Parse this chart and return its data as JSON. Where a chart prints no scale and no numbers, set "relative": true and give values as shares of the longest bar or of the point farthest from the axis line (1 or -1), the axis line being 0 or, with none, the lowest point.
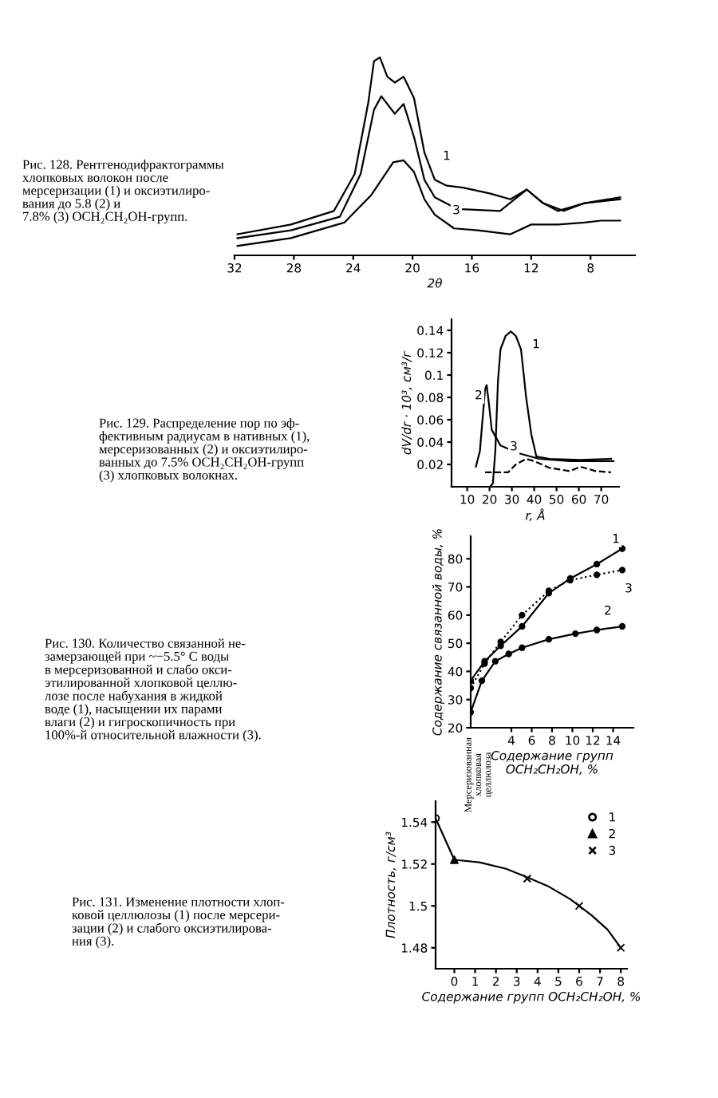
{
  "chart_data": [
    {
      "type": "line",
      "relative": true,
      "xlabel": "2θ",
      "xlim": [
        32,
        5
      ],
      "xticks": [
        32,
        28,
        24,
        20,
        16,
        12,
        8
      ],
      "tick_labels": "x",
      "series": [
        {
          "color": "#000000",
          "x": [
            31.8,
            28.2,
            25.3,
            23.9,
            23.0,
            22.6,
            22.2,
            21.7,
            21.2,
            20.6,
            19.9,
            19.2,
            18.5,
            17.7,
            16.6,
            14.8,
            13.4,
            12.3,
            11.2,
            9.8,
            8.4,
            6.0
          ],
          "values": [
            0.09,
            0.14,
            0.21,
            0.4,
            0.76,
            0.98,
            1.0,
            0.9,
            0.87,
            0.9,
            0.79,
            0.51,
            0.37,
            0.34,
            0.33,
            0.3,
            0.27,
            0.32,
            0.25,
            0.21,
            0.25,
            0.27
          ]
        },
        {
          "color": "#000000",
          "x": [
            31.8,
            28.2,
            24.9,
            23.5,
            22.6,
            22.1,
            21.2,
            20.6,
            19.9,
            19.2,
            18.5,
            17.0,
            14.1,
            12.3,
            11.2,
            10.2,
            8.4,
            6.0
          ],
          "values": [
            0.07,
            0.11,
            0.18,
            0.4,
            0.73,
            0.8,
            0.71,
            0.76,
            0.59,
            0.37,
            0.28,
            0.22,
            0.21,
            0.32,
            0.25,
            0.21,
            0.25,
            0.28
          ]
        },
        {
          "color": "#000000",
          "x": [
            31.8,
            28.2,
            24.6,
            22.8,
            21.3,
            20.6,
            19.9,
            19.2,
            18.5,
            17.2,
            15.6,
            13.4,
            12.0,
            10.2,
            8.4,
            7.3,
            6.0
          ],
          "values": [
            0.03,
            0.07,
            0.15,
            0.29,
            0.46,
            0.47,
            0.41,
            0.27,
            0.19,
            0.12,
            0.11,
            0.09,
            0.14,
            0.14,
            0.15,
            0.16,
            0.16
          ]
        }
      ],
      "annotations": [
        "1",
        "3",
        "Рис. 128. Рентгенодифрактограммы\nхлопковых волокон после\nмерсеризации (1) и оксиэтилиро-\nвания до 5.8 (2) и\n7.8% (3) OCH₂CH₂OH-групп."
      ]
    },
    {
      "type": "line",
      "ylabel": "dV/dr · 10³, см³/г",
      "xlabel": "r, Å",
      "xlim": [
        3,
        78
      ],
      "ylim": [
        0,
        0.15
      ],
      "xticks": [
        10,
        20,
        30,
        40,
        50,
        60,
        70
      ],
      "yticks": [
        0.02,
        0.04,
        0.06,
        0.08,
        0.1,
        0.12,
        0.14
      ],
      "series": [
        {
          "color": "#000000",
          "x": [
            20.3,
            21.5,
            22.6,
            23.8,
            24.9,
            27.2,
            29.5,
            31.8,
            34.1,
            36.4,
            38.7,
            41.0,
            46.8,
            60.6,
            74.4
          ],
          "values": [
            0.0,
            0.003,
            0.032,
            0.095,
            0.123,
            0.135,
            0.139,
            0.135,
            0.123,
            0.08,
            0.047,
            0.027,
            0.025,
            0.024,
            0.025
          ]
        },
        {
          "color": "#000000",
          "x": [
            13.9,
            15.7,
            16.9,
            18.0,
            18.7,
            19.7,
            21.0,
            24.9,
            33.0,
            42.2,
            56.0,
            68.6,
            75.5
          ],
          "values": [
            0.018,
            0.032,
            0.061,
            0.087,
            0.091,
            0.075,
            0.051,
            0.037,
            0.03,
            0.025,
            0.023,
            0.023,
            0.023
          ]
        },
        {
          "color": "#000000",
          "line_style": "dashed",
          "x": [
            18.0,
            28.4,
            31.8,
            36.4,
            39.9,
            46.8,
            56.0,
            60.6,
            67.5,
            74.4
          ],
          "values": [
            0.013,
            0.013,
            0.02,
            0.025,
            0.023,
            0.017,
            0.014,
            0.018,
            0.014,
            0.013
          ]
        }
      ],
      "annotations": [
        "1",
        "2",
        "3",
        "Рис. 129. Распределение пор по эф-\nфективным радиусам в нативных (1),\nмерсеризованных (2) и оксиэтилиро-\nванных до 7.5% OCH₂CH₂OH-групп\n(3) хлопковых волокнах."
      ]
    },
    {
      "type": "line",
      "ylabel": "Содержание связанной воды, %",
      "xlabel": "Содержание групп\nOCH₂CH₂OH, %",
      "xlim": [
        0,
        16
      ],
      "ylim": [
        20,
        88
      ],
      "xticks": [
        4,
        6,
        8,
        10,
        12,
        14
      ],
      "yticks": [
        20,
        30,
        40,
        50,
        60,
        70,
        80
      ],
      "marker": "circle",
      "series": [
        {
          "color": "#000000",
          "x": [
            0,
            1.37,
            2.95,
            5.05,
            7.68,
            9.79,
            12.4,
            14.9
          ],
          "values": [
            36.7,
            43.6,
            49.1,
            56.0,
            67.8,
            73.0,
            78.1,
            83.6
          ]
        },
        {
          "color": "#000000",
          "x": [
            0,
            1.1,
            2.42,
            3.74,
            5.05,
            7.68,
            10.3,
            12.4,
            14.9
          ],
          "values": [
            25.5,
            36.7,
            43.6,
            46.2,
            48.4,
            51.4,
            53.4,
            54.7,
            56.0
          ]
        },
        {
          "color": "#000000",
          "line_style": "dotted",
          "x": [
            0,
            1.37,
            2.95,
            5.05,
            7.68,
            9.79,
            12.4,
            14.9
          ],
          "values": [
            34.1,
            42.8,
            50.5,
            60.0,
            68.6,
            72.4,
            74.3,
            76.0
          ]
        }
      ],
      "annotations": [
        "1",
        "2",
        "3",
        "Рис. 130. Количество связанной не-\nзамерзающей при ~−5.5° C воды\nв мерсеризованной и слабо окси-\nэтилированной хлопковой целлю-\nлозе после набухания в жидкой\nводе (1), насыщении их парами\nвлаги (2) и гигроскопичность при\n100%-й относительной влажности (3).",
        "Мерсеризованная\nхлопковая\nцеллюлоза"
      ]
    },
    {
      "type": "line",
      "ylabel": "Плотность, г/см³",
      "xlabel": "Содержание групп OCH₂CH₂OH, %",
      "xlim": [
        -0.9,
        8.3
      ],
      "ylim": [
        1.47,
        1.55
      ],
      "xticks": [
        0,
        1,
        2,
        3,
        4,
        5,
        6,
        7,
        8
      ],
      "yticks": [
        1.48,
        1.5,
        1.52,
        1.54
      ],
      "legend": "top right",
      "series": [
        {
          "color": "#000000",
          "x": [
            -0.9,
            0,
            1.2,
            2.49,
            3.51,
            4.54,
            5.56,
            6.59,
            7.36,
            8.0
          ],
          "values": [
            1.5418,
            1.522,
            1.5208,
            1.5177,
            1.5136,
            1.5092,
            1.5033,
            1.4956,
            1.4887,
            1.48
          ]
        },
        {
          "type": "scatter",
          "name": "1",
          "marker": "circle",
          "color": "#000000",
          "x": [
            -0.9
          ],
          "values": [
            1.5418
          ]
        },
        {
          "type": "scatter",
          "name": "2",
          "marker": "triangle",
          "color": "#000000",
          "x": [
            0
          ],
          "values": [
            1.522
          ]
        },
        {
          "type": "scatter",
          "name": "3",
          "marker": "cross",
          "color": "#000000",
          "x": [
            3.5,
            6.0,
            8.0
          ],
          "values": [
            1.513,
            1.5,
            1.48
          ]
        }
      ],
      "annotations": [
        "Рис. 131. Изменение плотности хлоп-\nковой целлюлозы (1) после мерсери-\nзации (2) и слабого оксиэтилирова-\nния (3)."
      ]
    }
  ]
}
